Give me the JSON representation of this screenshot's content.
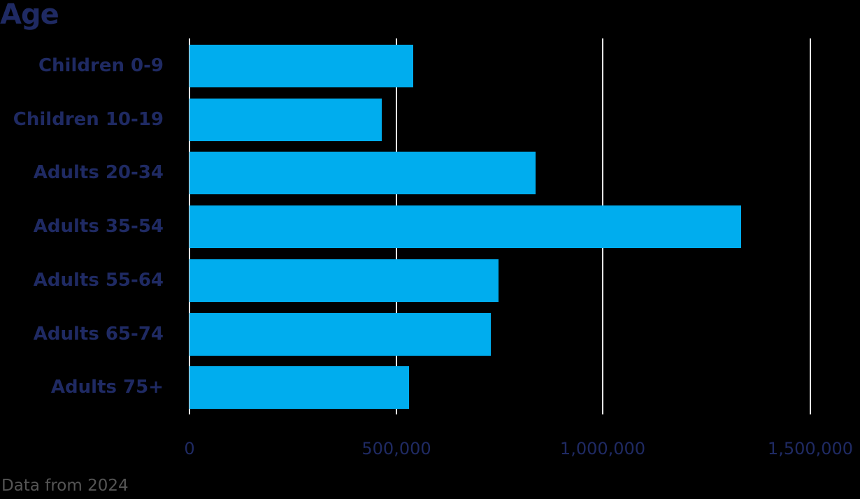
{
  "chart_data": {
    "type": "bar",
    "orientation": "horizontal",
    "title": "Age",
    "categories": [
      "Children 0-9",
      "Children 10-19",
      "Adults 20-34",
      "Adults 35-54",
      "Adults 55-64",
      "Adults 65-74",
      "Adults 75+"
    ],
    "values": [
      541000,
      464000,
      836000,
      1332000,
      746000,
      728000,
      530000
    ],
    "xlabel": "",
    "ylabel": "",
    "xlim": [
      0,
      1500000
    ],
    "xticks": [
      "0",
      "500,000",
      "1,000,000",
      "1,500,000"
    ],
    "grid": true,
    "bar_color": "#00adee",
    "footnote": "Data from 2024"
  },
  "title": "Age",
  "labels": [
    "Children 0-9",
    "Children 10-19",
    "Adults 20-34",
    "Adults 35-54",
    "Adults 55-64",
    "Adults 65-74",
    "Adults 75+"
  ],
  "ticks": [
    "0",
    "500,000",
    "1,000,000",
    "1,500,000"
  ],
  "footer": "Data from 2024"
}
